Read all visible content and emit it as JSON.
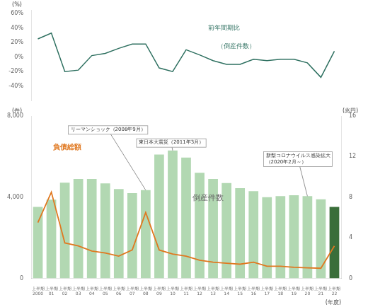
{
  "chart_data": [
    {
      "type": "line",
      "categories": [
        "上半期\n2000",
        "上半期\n01",
        "上半期\n02",
        "上半期\n03",
        "上半期\n04",
        "上半期\n05",
        "上半期\n06",
        "上半期\n07",
        "上半期\n08",
        "上半期\n09",
        "上半期\n10",
        "上半期\n11",
        "上半期\n12",
        "上半期\n13",
        "上半期\n14",
        "上半期\n15",
        "上半期\n16",
        "上半期\n17",
        "上半期\n18",
        "上半期\n19",
        "上半期\n20",
        "上半期\n21",
        "上半期\n22"
      ],
      "values": [
        25,
        33,
        -20,
        -18,
        2,
        5,
        12,
        18,
        18,
        -15,
        -20,
        10,
        3,
        -5,
        -10,
        -10,
        -3,
        -5,
        -3,
        -3,
        -8,
        -28,
        8
      ],
      "color": "#2e7060",
      "y_label": "(%)",
      "ylim": [
        -60,
        65
      ],
      "yticks": [
        {
          "value": -40,
          "label": "-40%"
        },
        {
          "value": -20,
          "label": "-20%"
        },
        {
          "value": 0,
          "label": "0%"
        },
        {
          "value": 20,
          "label": "20%"
        },
        {
          "value": 40,
          "label": "40%"
        },
        {
          "value": 60,
          "label": "60%"
        }
      ],
      "annotations": [
        {
          "text": "前年間期比"
        },
        {
          "text": "（倒産件数）"
        }
      ],
      "tick_labels": "y",
      "grid": false
    },
    {
      "type": "bar",
      "categories": [
        "上半期\n2000",
        "上半期\n01",
        "上半期\n02",
        "上半期\n03",
        "上半期\n04",
        "上半期\n05",
        "上半期\n06",
        "上半期\n07",
        "上半期\n08",
        "上半期\n09",
        "上半期\n10",
        "上半期\n11",
        "上半期\n12",
        "上半期\n13",
        "上半期\n14",
        "上半期\n15",
        "上半期\n16",
        "上半期\n17",
        "上半期\n18",
        "上半期\n19",
        "上半期\n20",
        "上半期\n21",
        "上半期\n22"
      ],
      "series": [
        {
          "name": "倒産件数",
          "type": "bar",
          "colors": [
            "#b2d8b2",
            "#b2d8b2",
            "#b2d8b2",
            "#b2d8b2",
            "#b2d8b2",
            "#b2d8b2",
            "#b2d8b2",
            "#b2d8b2",
            "#b2d8b2",
            "#b2d8b2",
            "#b2d8b2",
            "#b2d8b2",
            "#b2d8b2",
            "#b2d8b2",
            "#b2d8b2",
            "#b2d8b2",
            "#b2d8b2",
            "#b2d8b2",
            "#b2d8b2",
            "#b2d8b2",
            "#b2d8b2",
            "#b2d8b2",
            "#3a6e3a"
          ],
          "values": [
            3520,
            3880,
            4720,
            4900,
            4900,
            4680,
            4400,
            4200,
            4350,
            6100,
            6300,
            5950,
            5200,
            4900,
            4700,
            4450,
            4300,
            4000,
            4050,
            4100,
            4050,
            3900,
            3520
          ]
        },
        {
          "name": "負債総額",
          "type": "line",
          "color": "#e07820",
          "axis": "y2",
          "values": [
            5.5,
            8.5,
            3.5,
            3.2,
            2.7,
            2.5,
            2.2,
            2.8,
            6.5,
            2.8,
            2.4,
            2.2,
            1.8,
            1.6,
            1.5,
            1.4,
            1.6,
            1.2,
            1.2,
            1.1,
            1.05,
            1.0,
            3.2
          ]
        }
      ],
      "x_label": "(年度)",
      "y_label": "(件)",
      "y2_label": "(兆円)",
      "ylim": [
        0,
        8000
      ],
      "yticks": [
        0,
        {
          "value": 4000,
          "label": "4,000"
        },
        {
          "value": 8000,
          "label": "8,000"
        }
      ],
      "y2lim": [
        0,
        16
      ],
      "y2ticks": [
        0,
        4,
        8,
        12,
        16
      ],
      "annotations": [
        {
          "text": "リーマンショック（2008年9月）"
        },
        {
          "text": "東日本大震災（2011年3月）"
        },
        {
          "text": "新型コロナウイルス感染拡大\n（2020年2月～）"
        }
      ],
      "grid": false
    }
  ]
}
